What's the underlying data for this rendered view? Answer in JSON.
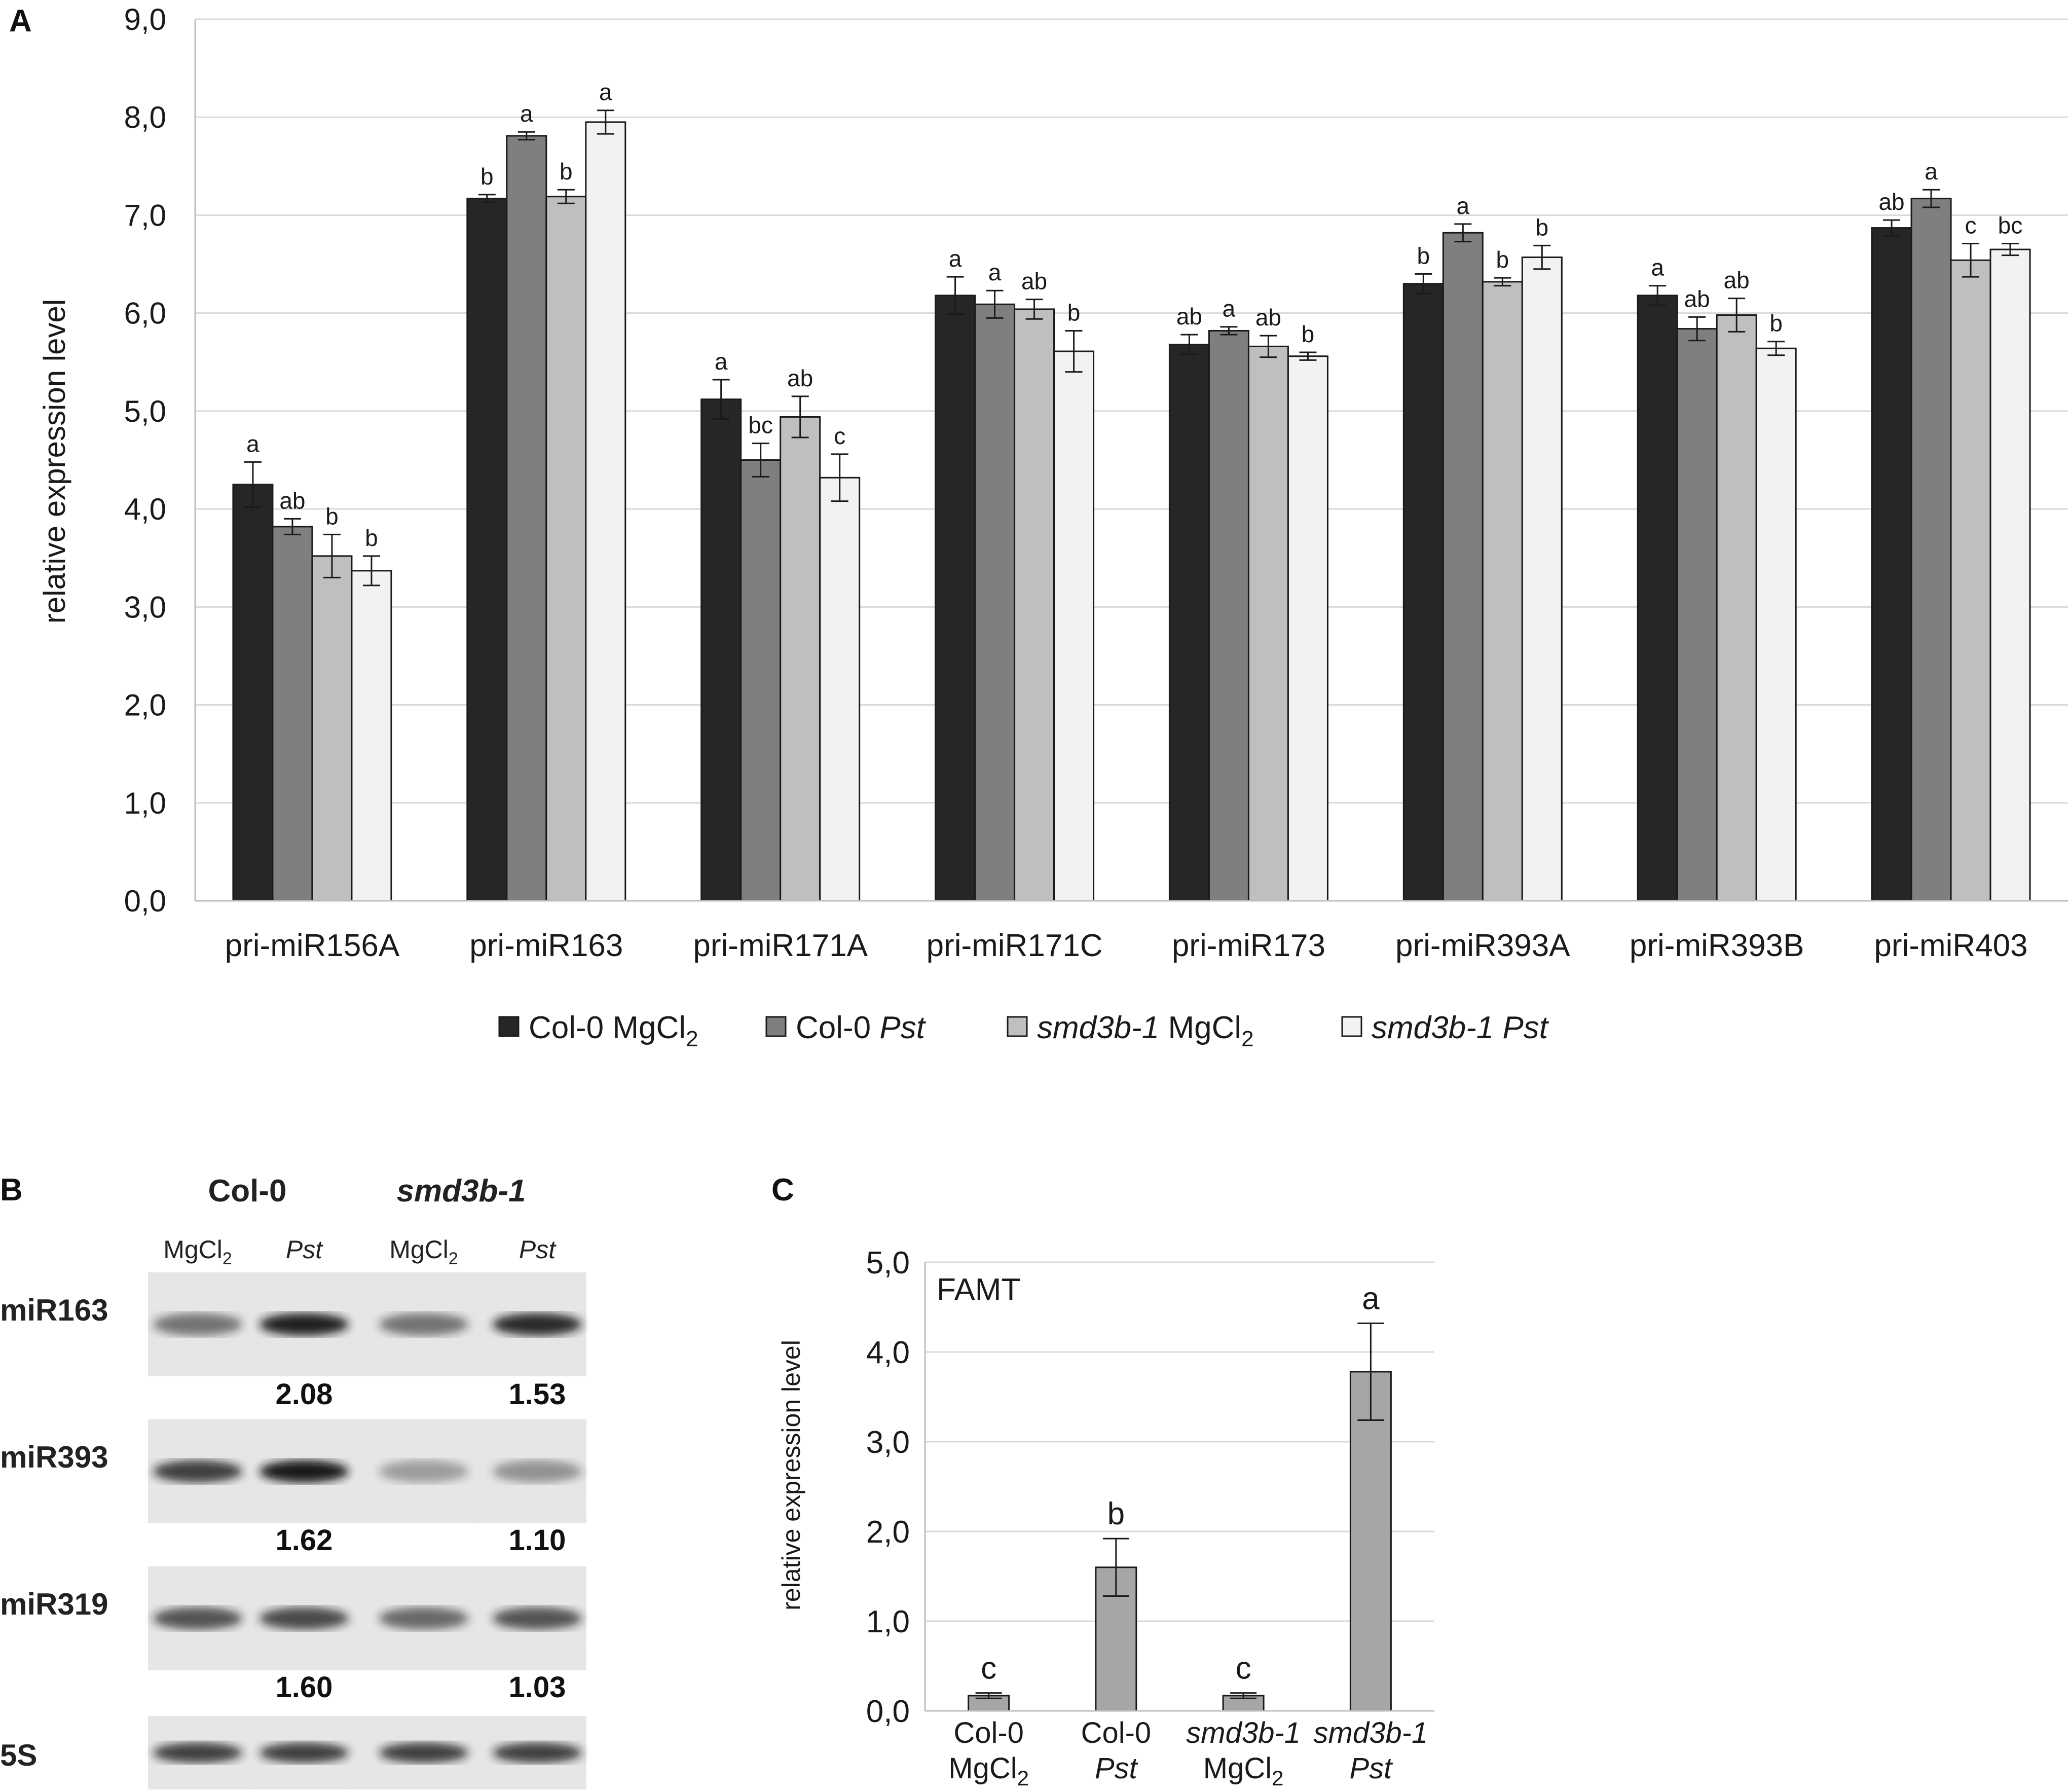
{
  "panels": {
    "A": "A",
    "B": "B",
    "C": "C"
  },
  "chart_data": [
    {
      "id": "A",
      "type": "bar",
      "ylabel": "relative expression level",
      "ylim": [
        0,
        9
      ],
      "yticks": [
        "0,0",
        "1,0",
        "2,0",
        "3,0",
        "4,0",
        "5,0",
        "6,0",
        "7,0",
        "8,0",
        "9,0"
      ],
      "grid": true,
      "categories": [
        "pri-miR156A",
        "pri-miR163",
        "pri-miR171A",
        "pri-miR171C",
        "pri-miR173",
        "pri-miR393A",
        "pri-miR393B",
        "pri-miR403"
      ],
      "series": [
        {
          "name": "Col-0 MgCl2",
          "color": "#262626",
          "values": [
            4.25,
            7.17,
            5.12,
            6.18,
            5.68,
            6.3,
            6.18,
            6.87
          ],
          "errors": [
            0.23,
            0.04,
            0.2,
            0.19,
            0.1,
            0.1,
            0.1,
            0.08
          ],
          "letters": [
            "a",
            "b",
            "a",
            "a",
            "ab",
            "b",
            "a",
            "ab"
          ]
        },
        {
          "name": "Col-0 Pst",
          "color": "#7f7f7f",
          "values": [
            3.82,
            7.81,
            4.5,
            6.09,
            5.82,
            6.82,
            5.84,
            7.17
          ],
          "errors": [
            0.08,
            0.04,
            0.17,
            0.14,
            0.04,
            0.09,
            0.12,
            0.09
          ],
          "letters": [
            "ab",
            "a",
            "bc",
            "a",
            "a",
            "a",
            "ab",
            "a"
          ]
        },
        {
          "name": "smd3b-1 MgCl2",
          "color": "#bfbfbf",
          "values": [
            3.52,
            7.19,
            4.94,
            6.04,
            5.66,
            6.32,
            5.98,
            6.54
          ],
          "errors": [
            0.22,
            0.07,
            0.21,
            0.1,
            0.11,
            0.04,
            0.17,
            0.17
          ],
          "letters": [
            "b",
            "b",
            "ab",
            "ab",
            "ab",
            "b",
            "ab",
            "c"
          ]
        },
        {
          "name": "smd3b-1 Pst",
          "color": "#f2f2f2",
          "values": [
            3.37,
            7.95,
            4.32,
            5.61,
            5.56,
            6.57,
            5.64,
            6.65
          ],
          "errors": [
            0.15,
            0.12,
            0.24,
            0.21,
            0.04,
            0.12,
            0.07,
            0.06
          ],
          "letters": [
            "b",
            "a",
            "c",
            "b",
            "b",
            "b",
            "b",
            "bc"
          ]
        }
      ],
      "legend": [
        {
          "pre": "Col-0 MgCl",
          "sub": "2",
          "post": "",
          "italic": false,
          "color": "#262626"
        },
        {
          "pre": "Col-0 ",
          "italic_part": "Pst",
          "color": "#7f7f7f"
        },
        {
          "italic_lead": "smd3b-1",
          "pre": " MgCl",
          "sub": "2",
          "color": "#bfbfbf"
        },
        {
          "italic_full": "smd3b-1 Pst",
          "color": "#f2f2f2"
        }
      ]
    },
    {
      "id": "C",
      "type": "bar",
      "title": "FAMT",
      "ylabel": "relative expression level",
      "ylim": [
        0,
        5
      ],
      "yticks": [
        "0,0",
        "1,0",
        "2,0",
        "3,0",
        "4,0",
        "5,0"
      ],
      "grid": true,
      "categories": [
        {
          "line1": "Col-0",
          "line1_italic": false,
          "line2": "MgCl",
          "line2_sub": "2",
          "line2_italic": false
        },
        {
          "line1": "Col-0",
          "line1_italic": false,
          "line2": "Pst",
          "line2_sub": "",
          "line2_italic": true
        },
        {
          "line1": "smd3b-1",
          "line1_italic": true,
          "line2": "MgCl",
          "line2_sub": "2",
          "line2_italic": false
        },
        {
          "line1": "smd3b-1",
          "line1_italic": true,
          "line2": "Pst",
          "line2_sub": "",
          "line2_italic": true
        }
      ],
      "values": [
        0.17,
        1.6,
        0.17,
        3.78
      ],
      "errors": [
        0.03,
        0.32,
        0.03,
        0.54
      ],
      "letters": [
        "c",
        "b",
        "c",
        "a"
      ],
      "color": "#a6a6a6"
    }
  ],
  "blot": {
    "header_col0": "Col-0",
    "header_mutant": "smd3b-1",
    "sub_labels": [
      {
        "text": "MgCl",
        "sub": "2",
        "italic": false
      },
      {
        "text": "Pst",
        "sub": "",
        "italic": true
      },
      {
        "text": "MgCl",
        "sub": "2",
        "italic": false
      },
      {
        "text": "Pst",
        "sub": "",
        "italic": true
      }
    ],
    "rows": [
      {
        "label": "miR163",
        "values": [
          "2.08",
          "1.53"
        ],
        "intensity": [
          0.55,
          0.95,
          0.55,
          0.9
        ]
      },
      {
        "label": "miR393",
        "values": [
          "1.62",
          "1.10"
        ],
        "intensity": [
          0.8,
          0.98,
          0.35,
          0.4
        ]
      },
      {
        "label": "miR319",
        "values": [
          "1.60",
          "1.03"
        ],
        "intensity": [
          0.7,
          0.75,
          0.6,
          0.7
        ]
      },
      {
        "label": "5S",
        "values": [],
        "intensity": [
          0.8,
          0.8,
          0.8,
          0.8
        ]
      }
    ]
  }
}
